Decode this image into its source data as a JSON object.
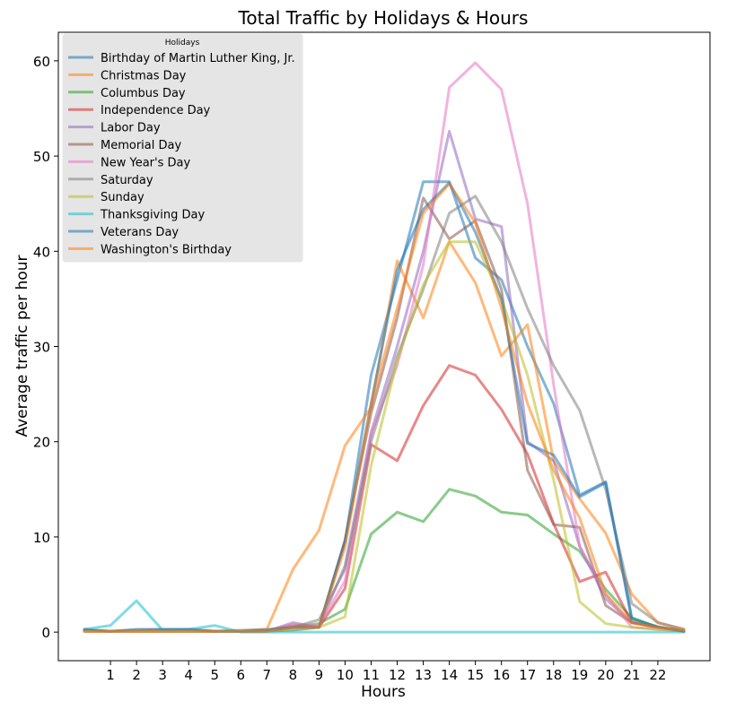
{
  "chart_data": {
    "type": "line",
    "title": "Total Traffic by Holidays & Hours",
    "xlabel": "Hours",
    "ylabel": "Average traffic per hour",
    "xlim": [
      -1,
      24
    ],
    "ylim": [
      -3,
      63
    ],
    "x_ticks": [
      1,
      2,
      3,
      4,
      5,
      6,
      7,
      8,
      9,
      10,
      11,
      12,
      13,
      14,
      15,
      16,
      17,
      18,
      19,
      20,
      21,
      22
    ],
    "y_ticks": [
      0,
      10,
      20,
      30,
      40,
      50,
      60
    ],
    "grid": false,
    "legend": {
      "title": "Holidays",
      "placement": "top-left"
    },
    "x": [
      0,
      1,
      2,
      3,
      4,
      5,
      6,
      7,
      8,
      9,
      10,
      11,
      12,
      13,
      14,
      15,
      16,
      17,
      18,
      19,
      20,
      21,
      22,
      23
    ],
    "series": [
      {
        "name": "Birthday of Martin Luther King, Jr.",
        "color": "#1f77b4",
        "values": [
          0.2,
          0.1,
          0.1,
          0.1,
          0.1,
          0.1,
          0.1,
          0.1,
          0.2,
          0.5,
          9.5,
          27.0,
          37.0,
          47.3,
          47.3,
          39.3,
          37.0,
          30.0,
          24.0,
          14.4,
          15.8,
          1.5,
          0.5,
          0.1
        ]
      },
      {
        "name": "Christmas Day",
        "color": "#ff7f0e",
        "values": [
          0.1,
          0.1,
          0.1,
          0.1,
          0.1,
          0.1,
          0.1,
          0.3,
          6.6,
          10.7,
          19.6,
          23.6,
          39.0,
          33.0,
          41.0,
          36.7,
          29.0,
          32.3,
          18.0,
          14.0,
          10.4,
          4.0,
          1.0,
          0.3
        ]
      },
      {
        "name": "Columbus Day",
        "color": "#2ca02c",
        "values": [
          0.1,
          0.1,
          0.1,
          0.1,
          0.1,
          0.1,
          0.1,
          0.1,
          0.5,
          0.9,
          2.4,
          10.3,
          12.6,
          11.6,
          15.0,
          14.3,
          12.6,
          12.3,
          10.3,
          8.5,
          4.5,
          1.5,
          0.5,
          0.1
        ]
      },
      {
        "name": "Independence Day",
        "color": "#d62728",
        "values": [
          0.1,
          0.1,
          0.1,
          0.1,
          0.1,
          0.1,
          0.1,
          0.1,
          0.5,
          0.5,
          4.6,
          19.7,
          18.0,
          23.8,
          28.0,
          27.0,
          23.4,
          18.7,
          11.4,
          5.3,
          6.3,
          1.0,
          0.5,
          0.1
        ]
      },
      {
        "name": "Labor Day",
        "color": "#9467bd",
        "values": [
          0.1,
          0.1,
          0.1,
          0.1,
          0.1,
          0.1,
          0.1,
          0.1,
          1.0,
          0.5,
          7.0,
          21.0,
          30.0,
          40.0,
          52.6,
          43.4,
          42.6,
          20.0,
          18.0,
          9.0,
          3.5,
          1.0,
          0.5,
          0.1
        ]
      },
      {
        "name": "Memorial Day",
        "color": "#8c564b",
        "values": [
          0.1,
          0.1,
          0.1,
          0.1,
          0.1,
          0.1,
          0.1,
          0.1,
          0.7,
          0.5,
          9.7,
          23.0,
          33.0,
          45.6,
          41.3,
          43.2,
          36.0,
          17.0,
          11.3,
          11.0,
          2.8,
          1.0,
          0.5,
          0.1
        ]
      },
      {
        "name": "New Year's Day",
        "color": "#e377c2",
        "values": [
          0.1,
          0.1,
          0.1,
          0.1,
          0.1,
          0.1,
          0.1,
          0.1,
          0.8,
          0.7,
          5.4,
          20.8,
          28.0,
          38.6,
          57.2,
          59.8,
          57.0,
          45.0,
          26.0,
          9.0,
          4.0,
          0.5,
          0.3,
          0.1
        ]
      },
      {
        "name": "Saturday",
        "color": "#7f7f7f",
        "values": [
          0.2,
          0.1,
          0.2,
          0.3,
          0.3,
          0.1,
          0.2,
          0.3,
          0.5,
          1.3,
          6.6,
          20.0,
          29.0,
          36.0,
          44.0,
          45.8,
          41.0,
          34.0,
          28.0,
          23.3,
          15.0,
          3.0,
          1.0,
          0.3
        ]
      },
      {
        "name": "Sunday",
        "color": "#bcbd22",
        "values": [
          0.1,
          0.1,
          0.1,
          0.1,
          0.1,
          0.1,
          0.1,
          0.1,
          0.3,
          0.5,
          1.6,
          17.5,
          28.5,
          36.5,
          41.0,
          41.0,
          35.0,
          27.0,
          16.0,
          3.2,
          0.9,
          0.5,
          0.3,
          0.1
        ]
      },
      {
        "name": "Thanksgiving Day",
        "color": "#17becf",
        "values": [
          0.3,
          0.7,
          3.3,
          0.2,
          0.3,
          0.7,
          0.0,
          0.0,
          0.0,
          0.0,
          0.0,
          0.0,
          0.0,
          0.0,
          0.0,
          0.0,
          0.0,
          0.0,
          0.0,
          0.0,
          0.0,
          0.0,
          0.0,
          0.0
        ]
      },
      {
        "name": "Veterans Day",
        "color": "#1f77b4",
        "values": [
          0.3,
          0.1,
          0.3,
          0.3,
          0.3,
          0.1,
          0.1,
          0.2,
          0.5,
          0.5,
          9.5,
          24.0,
          38.0,
          44.4,
          47.2,
          42.0,
          35.0,
          19.8,
          18.6,
          14.2,
          15.7,
          1.3,
          0.6,
          0.1
        ]
      },
      {
        "name": "Washington's Birthday",
        "color": "#ff7f0e",
        "values": [
          0.1,
          0.1,
          0.1,
          0.1,
          0.1,
          0.1,
          0.1,
          0.1,
          0.5,
          0.5,
          8.9,
          24.0,
          34.0,
          44.0,
          47.1,
          43.0,
          34.0,
          24.0,
          17.0,
          12.0,
          4.0,
          1.0,
          0.5,
          0.2
        ]
      }
    ]
  }
}
